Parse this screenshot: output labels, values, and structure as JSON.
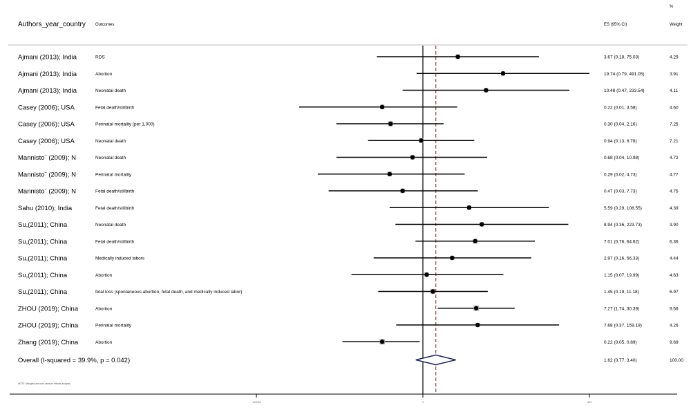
{
  "header": {
    "authors_col": "Authors_year_country",
    "outcomes_col": "Outcomes",
    "es_col": "ES (95% CI)",
    "weight_col_top": "%",
    "weight_col": "Weight"
  },
  "chart_data": {
    "type": "forest",
    "scale": "log",
    "null_value": 1,
    "pooled_es": 1.62,
    "rows": [
      {
        "study": "Ajmani (2013); India",
        "outcome": "RDS",
        "es": 3.67,
        "lo": 0.18,
        "hi": 75.03,
        "es_text": "3.67 (0.18, 75.03)",
        "weight": "4.29"
      },
      {
        "study": "Ajmani (2013); India",
        "outcome": "Abortion",
        "es": 19.74,
        "lo": 0.79,
        "hi": 491.05,
        "es_text": "19.74 (0.79, 491.05)",
        "weight": "3.91"
      },
      {
        "study": "Ajmani (2013); India",
        "outcome": "Neonatal death",
        "es": 10.48,
        "lo": 0.47,
        "hi": 233.54,
        "es_text": "10.48 (0.47, 233.54)",
        "weight": "4.11"
      },
      {
        "study": "Casey (2006); USA",
        "outcome": "Fetal death/stillbirth",
        "es": 0.22,
        "lo": 0.01,
        "hi": 3.58,
        "es_text": "0.22 (0.01, 3.58)",
        "weight": "4.60"
      },
      {
        "study": "Casey (2006); USA",
        "outcome": "Perinatal mortality (per 1,000)",
        "es": 0.3,
        "lo": 0.04,
        "hi": 2.16,
        "es_text": "0.30 (0.04, 2.16)",
        "weight": "7.25"
      },
      {
        "study": "Casey (2006); USA",
        "outcome": "Neonatal death",
        "es": 0.94,
        "lo": 0.13,
        "hi": 6.78,
        "es_text": "0.94 (0.13, 6.78)",
        "weight": "7.21"
      },
      {
        "study": "Mannisto¨ (2009); N",
        "outcome": "Neonatal death",
        "es": 0.68,
        "lo": 0.04,
        "hi": 10.98,
        "es_text": "0.68 (0.04, 10.98)",
        "weight": "4.72"
      },
      {
        "study": "Mannisto¨ (2009); N",
        "outcome": "Perinatal mortality",
        "es": 0.29,
        "lo": 0.02,
        "hi": 4.73,
        "es_text": "0.29 (0.02, 4.73)",
        "weight": "4.77"
      },
      {
        "study": "Mannisto¨ (2009); N",
        "outcome": "Fetal death/stillbirth",
        "es": 0.47,
        "lo": 0.03,
        "hi": 7.73,
        "es_text": "0.47 (0.03, 7.73)",
        "weight": "4.75"
      },
      {
        "study": "Sahu (2010); India",
        "outcome": "Fetal death/stillbirth",
        "es": 5.59,
        "lo": 0.29,
        "hi": 108.55,
        "es_text": "5.59 (0.29, 108.55)",
        "weight": "4.39"
      },
      {
        "study": "Su,(2011); China",
        "outcome": "Neonatal death",
        "es": 8.94,
        "lo": 0.36,
        "hi": 223.73,
        "es_text": "8.94 (0.36, 223.73)",
        "weight": "3.90"
      },
      {
        "study": "Su,(2011); China",
        "outcome": "Fetal death/stillbirth",
        "es": 7.01,
        "lo": 0.76,
        "hi": 64.62,
        "es_text": "7.01 (0.76, 64.62)",
        "weight": "6.36"
      },
      {
        "study": "Su,(2011); China",
        "outcome": "Medically induced labors",
        "es": 2.97,
        "lo": 0.16,
        "hi": 56.33,
        "es_text": "2.97 (0.16, 56.33)",
        "weight": "4.44"
      },
      {
        "study": "Su,(2011); China",
        "outcome": "Abortion",
        "es": 1.15,
        "lo": 0.07,
        "hi": 19.99,
        "es_text": "1.15 (0.07, 19.99)",
        "weight": "4.63"
      },
      {
        "study": "Su,(2011); China",
        "outcome": "fetal loss (spontaneous abortion, fetal death, and medically induced labor)",
        "es": 1.45,
        "lo": 0.19,
        "hi": 11.18,
        "es_text": "1.45 (0.19, 11.18)",
        "weight": "6.97"
      },
      {
        "study": "ZHOU (2019); China",
        "outcome": "Abortion",
        "es": 7.27,
        "lo": 1.74,
        "hi": 30.39,
        "es_text": "7.27 (1.74, 30.39)",
        "weight": "9.56"
      },
      {
        "study": "ZHOU (2019); China",
        "outcome": "Perinatal mortality",
        "es": 7.68,
        "lo": 0.37,
        "hi": 159.19,
        "es_text": "7.68 (0.37, 159.19)",
        "weight": "4.26"
      },
      {
        "study": "Zhang (2019); China",
        "outcome": "Abortion",
        "es": 0.22,
        "lo": 0.05,
        "hi": 0.89,
        "es_text": "0.22 (0.05, 0.89)",
        "weight": "9.69"
      }
    ],
    "overall": {
      "label": "Overall  (I-squared = 39.9%, p = 0.042)",
      "es": 1.62,
      "lo": 0.77,
      "hi": 3.4,
      "es_text": "1.62 (0.77, 3.40)",
      "weight": "100.00"
    },
    "note": "NOTE: Weights are from random effects analysis",
    "x_axis": {
      "ticks": [
        {
          "value": 0.00204,
          "label": ".00204"
        },
        {
          "value": 1,
          "label": "1"
        },
        {
          "value": 491,
          "label": "491"
        }
      ]
    }
  }
}
